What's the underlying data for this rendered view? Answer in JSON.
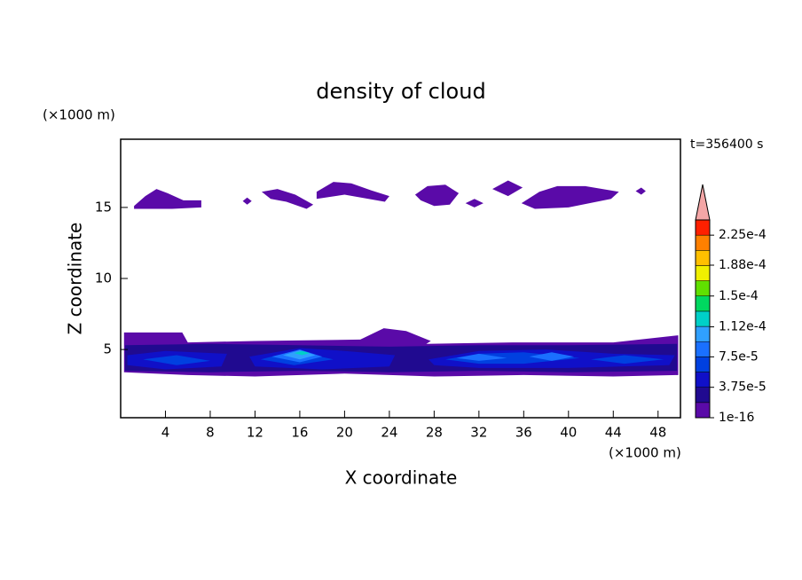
{
  "chart_data": {
    "type": "contour",
    "title": "density of cloud",
    "x_label": "X coordinate",
    "y_label": "Z coordinate",
    "x_unit": "(×1000 m)",
    "y_unit": "(×1000 m)",
    "time_label": "t=356400 s",
    "xlim": [
      0,
      50
    ],
    "ylim": [
      0.2,
      19.8
    ],
    "xticks": [
      4,
      8,
      12,
      16,
      20,
      24,
      28,
      32,
      36,
      40,
      44,
      48
    ],
    "yticks": [
      5,
      10,
      15
    ],
    "clim": [
      1e-16,
      0.00024375
    ],
    "colors": [
      "#5a0aa8",
      "#200a90",
      "#1010c8",
      "#0040e0",
      "#1a70ff",
      "#30a0ff",
      "#00d0c8",
      "#00d860",
      "#60e000",
      "#f0f000",
      "#ffc000",
      "#ff8000",
      "#ff2000"
    ],
    "extend_color": "#f4a6a6",
    "colorbar_ticks": [
      {
        "value": 1e-16,
        "label": "1e-16"
      },
      {
        "value": 3.75e-05,
        "label": "3.75e-5"
      },
      {
        "value": 7.5e-05,
        "label": "7.5e-5"
      },
      {
        "value": 0.000112,
        "label": "1.12e-4"
      },
      {
        "value": 0.00015,
        "label": "1.5e-4"
      },
      {
        "value": 0.000188,
        "label": "1.88e-4"
      },
      {
        "value": 0.000225,
        "label": "2.25e-4"
      }
    ],
    "regions": [
      {
        "value": 1e-05,
        "x": [
          1.2,
          2.2,
          3.2,
          4.2,
          5.6,
          7.2,
          7.2,
          4.6,
          1.2
        ],
        "z": [
          15.1,
          15.8,
          16.3,
          16.0,
          15.5,
          15.5,
          15.0,
          14.9,
          14.9
        ]
      },
      {
        "value": 1e-05,
        "x": [
          10.9,
          11.3,
          11.7,
          11.3
        ],
        "z": [
          15.45,
          15.7,
          15.45,
          15.2
        ]
      },
      {
        "value": 1e-05,
        "x": [
          12.6,
          14.0,
          15.6,
          17.2,
          16.6,
          14.8,
          13.4
        ],
        "z": [
          16.1,
          16.3,
          15.9,
          15.2,
          14.9,
          15.4,
          15.6
        ]
      },
      {
        "value": 1e-05,
        "x": [
          17.5,
          19.0,
          20.6,
          22.4,
          24.0,
          23.6,
          20.0,
          17.5
        ],
        "z": [
          16.1,
          16.8,
          16.7,
          16.2,
          15.8,
          15.4,
          15.9,
          15.6
        ]
      },
      {
        "value": 1e-05,
        "x": [
          26.3,
          27.4,
          29.0,
          30.2,
          29.4,
          28.0,
          26.8
        ],
        "z": [
          15.9,
          16.5,
          16.6,
          16.0,
          15.2,
          15.1,
          15.5
        ]
      },
      {
        "value": 1e-05,
        "x": [
          30.8,
          31.6,
          32.4,
          31.6
        ],
        "z": [
          15.3,
          15.6,
          15.3,
          15.0
        ]
      },
      {
        "value": 1e-05,
        "x": [
          33.2,
          34.6,
          35.9,
          34.6
        ],
        "z": [
          16.3,
          16.9,
          16.4,
          15.8
        ]
      },
      {
        "value": 1e-05,
        "x": [
          35.8,
          37.4,
          39.0,
          41.5,
          44.5,
          43.8,
          40.0,
          37.0
        ],
        "z": [
          15.3,
          16.1,
          16.5,
          16.5,
          16.1,
          15.6,
          15.0,
          14.9
        ]
      },
      {
        "value": 1e-05,
        "x": [
          46.0,
          46.5,
          46.9,
          46.5
        ],
        "z": [
          16.15,
          16.4,
          16.15,
          15.9
        ]
      },
      {
        "value": 1e-05,
        "x": [
          0.3,
          5.5,
          6.0,
          12.0,
          21.4,
          23.5,
          25.5,
          27.7,
          27.3,
          35.0,
          44.0,
          49.8,
          49.8,
          44.0,
          36.0,
          28.0,
          20.0,
          12.0,
          6.0,
          0.3
        ],
        "z": [
          6.2,
          6.2,
          5.5,
          5.6,
          5.7,
          6.5,
          6.3,
          5.6,
          5.4,
          5.5,
          5.5,
          6.0,
          3.2,
          3.1,
          3.2,
          3.1,
          3.3,
          3.1,
          3.2,
          3.4
        ]
      },
      {
        "value": 2.5e-05,
        "x": [
          0.4,
          8.0,
          16.0,
          24.0,
          32.0,
          40.0,
          49.7,
          49.7,
          40.0,
          32.0,
          24.0,
          16.0,
          8.0,
          0.4
        ],
        "z": [
          5.3,
          5.4,
          5.3,
          5.2,
          5.3,
          5.3,
          5.4,
          3.5,
          3.4,
          3.5,
          3.4,
          3.5,
          3.4,
          3.5
        ]
      },
      {
        "value": 4.5e-05,
        "x": [
          0.6,
          4.0,
          9.5,
          9.0,
          4.0,
          0.6
        ],
        "z": [
          4.6,
          4.9,
          4.7,
          3.8,
          3.6,
          3.9
        ]
      },
      {
        "value": 4.5e-05,
        "x": [
          11.5,
          16.0,
          20.0,
          24.5,
          24.0,
          18.0,
          12.0
        ],
        "z": [
          4.5,
          5.1,
          4.9,
          4.6,
          3.8,
          3.6,
          3.8
        ]
      },
      {
        "value": 4.5e-05,
        "x": [
          27.5,
          32.0,
          38.0,
          44.0,
          49.5,
          49.0,
          40.0,
          32.0,
          28.0
        ],
        "z": [
          4.3,
          4.9,
          5.0,
          4.7,
          4.6,
          3.9,
          3.7,
          3.7,
          3.9
        ]
      },
      {
        "value": 6e-05,
        "x": [
          2.0,
          5.0,
          8.0,
          5.0
        ],
        "z": [
          4.3,
          4.6,
          4.2,
          3.9
        ]
      },
      {
        "value": 6e-05,
        "x": [
          12.5,
          15.5,
          19.0,
          15.5
        ],
        "z": [
          4.3,
          4.9,
          4.3,
          3.9
        ]
      },
      {
        "value": 6e-05,
        "x": [
          29.0,
          32.0,
          36.0,
          41.0,
          36.0,
          32.0
        ],
        "z": [
          4.3,
          4.7,
          4.8,
          4.4,
          4.0,
          4.0
        ]
      },
      {
        "value": 6e-05,
        "x": [
          42.0,
          45.0,
          48.5,
          45.0
        ],
        "z": [
          4.3,
          4.6,
          4.3,
          4.0
        ]
      },
      {
        "value": 8e-05,
        "x": [
          13.5,
          16.0,
          18.0,
          16.0
        ],
        "z": [
          4.5,
          5.0,
          4.5,
          4.1
        ]
      },
      {
        "value": 8e-05,
        "x": [
          30.0,
          32.0,
          34.5,
          32.0
        ],
        "z": [
          4.4,
          4.7,
          4.4,
          4.2
        ]
      },
      {
        "value": 8e-05,
        "x": [
          36.5,
          38.5,
          40.5,
          38.5
        ],
        "z": [
          4.5,
          4.8,
          4.5,
          4.2
        ]
      },
      {
        "value": 0.0001,
        "x": [
          14.5,
          16.0,
          17.4,
          16.0
        ],
        "z": [
          4.6,
          4.95,
          4.6,
          4.3
        ]
      },
      {
        "value": 0.00012,
        "x": [
          15.5,
          16.2,
          16.9,
          16.2
        ],
        "z": [
          4.75,
          4.9,
          4.75,
          4.6
        ]
      }
    ]
  }
}
